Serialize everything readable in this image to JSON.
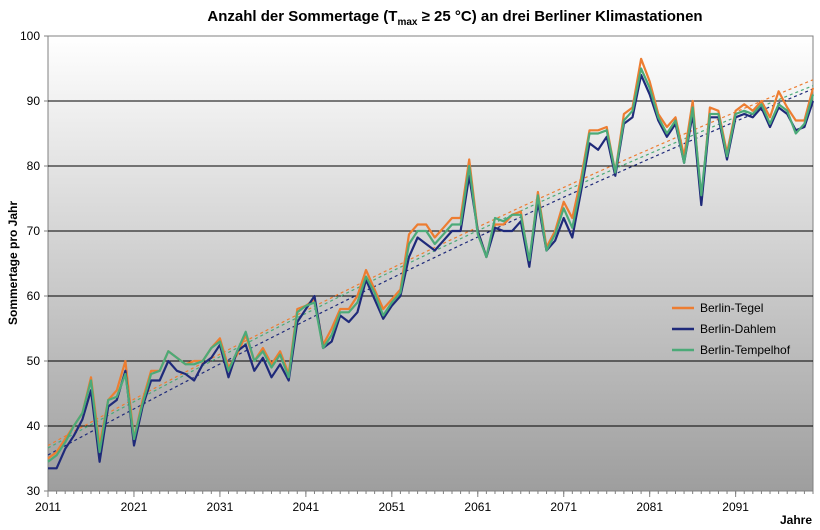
{
  "chart_data": {
    "type": "line",
    "title": {
      "prefix": "Anzahl der Sommertage (T",
      "subscript": "max",
      "suffix": " ≥ 25 °C) an drei Berliner Klimastationen"
    },
    "xlabel": "Jahre",
    "ylabel": "Sommertage pro Jahr",
    "xlim": [
      2011,
      2100
    ],
    "ylim": [
      30,
      100
    ],
    "x_ticks": [
      2011,
      2021,
      2031,
      2041,
      2051,
      2061,
      2071,
      2081,
      2091
    ],
    "y_ticks": [
      30,
      40,
      50,
      60,
      70,
      80,
      90,
      100
    ],
    "grid": "horizontal",
    "legend_position": "right",
    "x": [
      2011,
      2012,
      2013,
      2014,
      2015,
      2016,
      2017,
      2018,
      2019,
      2020,
      2021,
      2022,
      2023,
      2024,
      2025,
      2026,
      2027,
      2028,
      2029,
      2030,
      2031,
      2032,
      2033,
      2034,
      2035,
      2036,
      2037,
      2038,
      2039,
      2040,
      2041,
      2042,
      2043,
      2044,
      2045,
      2046,
      2047,
      2048,
      2049,
      2050,
      2051,
      2052,
      2053,
      2054,
      2055,
      2056,
      2057,
      2058,
      2059,
      2060,
      2061,
      2062,
      2063,
      2064,
      2065,
      2066,
      2067,
      2068,
      2069,
      2070,
      2071,
      2072,
      2073,
      2074,
      2075,
      2076,
      2077,
      2078,
      2079,
      2080,
      2081,
      2082,
      2083,
      2084,
      2085,
      2086,
      2087,
      2088,
      2089,
      2090,
      2091,
      2092,
      2093,
      2094,
      2095,
      2096,
      2097,
      2098,
      2099,
      2100
    ],
    "series": [
      {
        "name": "Berlin-Tegel",
        "color": "#ed7d31",
        "values": [
          35,
          36,
          38,
          40,
          42,
          47.5,
          37,
          44,
          45.5,
          50,
          38,
          44,
          48.5,
          48.5,
          51.5,
          50.5,
          49.5,
          50,
          50,
          52,
          53.5,
          49,
          51,
          54,
          50,
          52,
          49.5,
          51.5,
          48,
          58,
          58.5,
          59.5,
          52.5,
          55,
          58,
          58,
          60,
          64,
          61,
          58,
          59.5,
          61,
          69.5,
          71,
          71,
          69,
          70.5,
          72,
          72,
          81,
          70,
          66,
          71,
          71,
          72.5,
          73,
          65,
          76,
          67.5,
          70,
          74.5,
          72,
          78,
          85.5,
          85.5,
          86,
          79,
          88,
          89,
          96.5,
          93,
          88,
          86,
          87.5,
          81.5,
          90,
          74.5,
          89,
          88.5,
          82,
          88.5,
          89.5,
          88.5,
          90,
          87.5,
          91.5,
          89,
          87,
          87,
          92
        ]
      },
      {
        "name": "Berlin-Dahlem",
        "color": "#1f2a7a",
        "values": [
          33.5,
          33.5,
          36.5,
          38.5,
          41,
          45.5,
          34.5,
          43,
          44,
          48.5,
          37,
          43,
          47,
          47,
          50,
          48.5,
          48,
          47,
          49.5,
          50.5,
          52.5,
          47.5,
          51.5,
          52.5,
          48.5,
          50.5,
          47.5,
          49.5,
          47,
          56,
          58,
          60,
          52,
          53,
          57,
          56,
          57.5,
          62.5,
          59.5,
          56.5,
          58.5,
          60,
          66,
          69,
          68,
          67,
          68.5,
          70,
          70,
          78.5,
          70,
          66,
          70.5,
          70,
          70,
          71.5,
          64.5,
          74.5,
          67,
          68.5,
          72,
          69,
          76,
          83.5,
          82.5,
          84.5,
          78.5,
          86.5,
          87.5,
          94,
          91,
          87,
          84.5,
          86.5,
          80.5,
          88,
          74,
          87.5,
          87.5,
          81,
          87.5,
          88,
          87.5,
          89,
          86,
          89,
          88,
          85.5,
          86,
          90
        ]
      },
      {
        "name": "Berlin-Tempelhof",
        "color": "#4caa78",
        "values": [
          34.5,
          35.5,
          37.5,
          40,
          42,
          47,
          36,
          44,
          44.5,
          48,
          38,
          43.5,
          48,
          48.5,
          51.5,
          50.5,
          49.5,
          49.5,
          50,
          52,
          53,
          48.5,
          51.5,
          54.5,
          50,
          51.5,
          49,
          51,
          47.5,
          57.5,
          58.5,
          59,
          52,
          54,
          57.5,
          57.5,
          59,
          63,
          60.5,
          57,
          59,
          60.5,
          68,
          70,
          70,
          68,
          69.5,
          71,
          71,
          80,
          69.5,
          66,
          72,
          71.5,
          72.5,
          72.5,
          65.5,
          75.5,
          67,
          69.5,
          73.5,
          70.5,
          77,
          85,
          85,
          85.5,
          79,
          87,
          88.5,
          95,
          92,
          87.5,
          85,
          87,
          80.5,
          89,
          75.5,
          88,
          88,
          81.5,
          88,
          88.5,
          88,
          89.5,
          86.5,
          89.5,
          88.5,
          85,
          86.5,
          91
        ]
      }
    ],
    "trendlines": [
      {
        "series": "Berlin-Tegel",
        "style": "dashed polynomial",
        "color": "#ed7d31"
      },
      {
        "series": "Berlin-Dahlem",
        "style": "dashed polynomial",
        "color": "#1f2a7a"
      },
      {
        "series": "Berlin-Tempelhof",
        "style": "dashed polynomial",
        "color": "#4caa78"
      }
    ]
  }
}
